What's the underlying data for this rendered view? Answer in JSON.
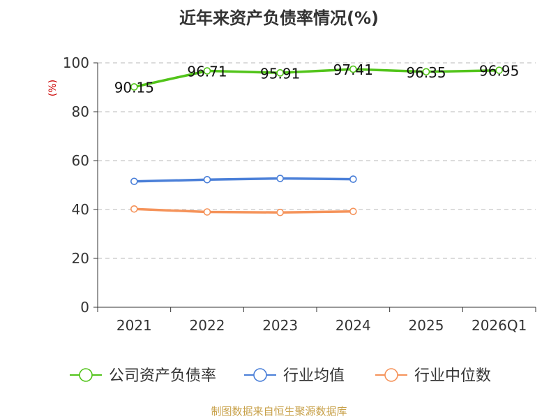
{
  "chart_data": {
    "type": "line",
    "title": "近年来资产负债率情况(%)",
    "ylabel": "(%)",
    "xlabel": "",
    "ylim": [
      0,
      100
    ],
    "yticks": [
      0,
      20,
      40,
      60,
      80,
      100
    ],
    "categories": [
      "2021",
      "2022",
      "2023",
      "2024",
      "2025",
      "2026Q1"
    ],
    "grid": "horizontal-dashed",
    "legend_position": "bottom",
    "series": [
      {
        "name": "公司资产负债率",
        "color": "#52c41a",
        "values": [
          90.15,
          96.71,
          95.91,
          97.41,
          96.35,
          96.95
        ],
        "labels": [
          "90.15",
          "96.71",
          "95.91",
          "97.41",
          "96.35",
          "96.95"
        ]
      },
      {
        "name": "行业均值",
        "color": "#4a7fd8",
        "values": [
          51.5,
          52.2,
          52.7,
          52.4,
          null,
          null
        ]
      },
      {
        "name": "行业中位数",
        "color": "#f5935a",
        "values": [
          40.2,
          39.0,
          38.8,
          39.2,
          null,
          null
        ]
      }
    ]
  },
  "source": "制图数据来自恒生聚源数据库"
}
